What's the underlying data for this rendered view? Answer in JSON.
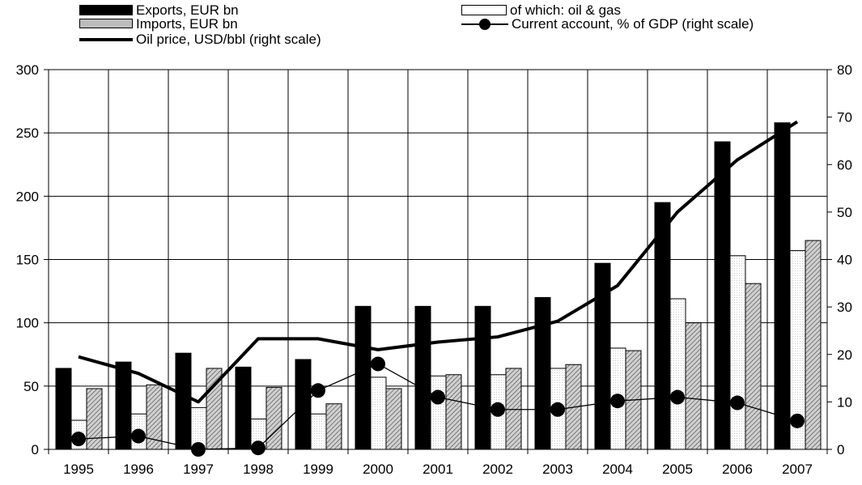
{
  "chart_data": {
    "type": "bar",
    "categories": [
      "1995",
      "1996",
      "1997",
      "1998",
      "1999",
      "2000",
      "2001",
      "2002",
      "2003",
      "2004",
      "2005",
      "2006",
      "2007"
    ],
    "series": [
      {
        "name": "Exports, EUR bn",
        "axis": "left",
        "kind": "bar",
        "fill": "#000000",
        "values": [
          64,
          69,
          76,
          65,
          71,
          113,
          113,
          113,
          120,
          147,
          195,
          243,
          258
        ]
      },
      {
        "name": "of which: oil & gas",
        "axis": "left",
        "kind": "bar",
        "fill": "#ffffff",
        "values": [
          23,
          28,
          33,
          24,
          28,
          57,
          58,
          59,
          64,
          80,
          119,
          153,
          157
        ]
      },
      {
        "name": "Imports, EUR bn",
        "axis": "left",
        "kind": "bar",
        "fill": "#bcbcbc",
        "values": [
          48,
          51,
          64,
          49,
          36,
          48,
          59,
          64,
          67,
          78,
          100,
          131,
          165
        ]
      },
      {
        "name": "Oil price, USD/bbl (right scale)",
        "axis": "right",
        "kind": "line",
        "values": [
          19.5,
          16,
          10,
          23.3,
          23.3,
          21,
          22.6,
          23.7,
          27,
          34.5,
          50,
          61,
          69
        ]
      },
      {
        "name": "Current account, % of GDP (right scale)",
        "axis": "right",
        "kind": "line-marker",
        "values": [
          2.2,
          2.8,
          0,
          0.3,
          12.4,
          18,
          11,
          8.4,
          8.4,
          10.2,
          11,
          9.8,
          6
        ]
      }
    ],
    "y_left": {
      "min": 0,
      "max": 300,
      "ticks": [
        0,
        50,
        100,
        150,
        200,
        250,
        300
      ]
    },
    "y_right": {
      "min": 0,
      "max": 80,
      "ticks": [
        0,
        10,
        20,
        30,
        40,
        50,
        60,
        70,
        80
      ]
    },
    "grid": true,
    "legend": "top"
  }
}
